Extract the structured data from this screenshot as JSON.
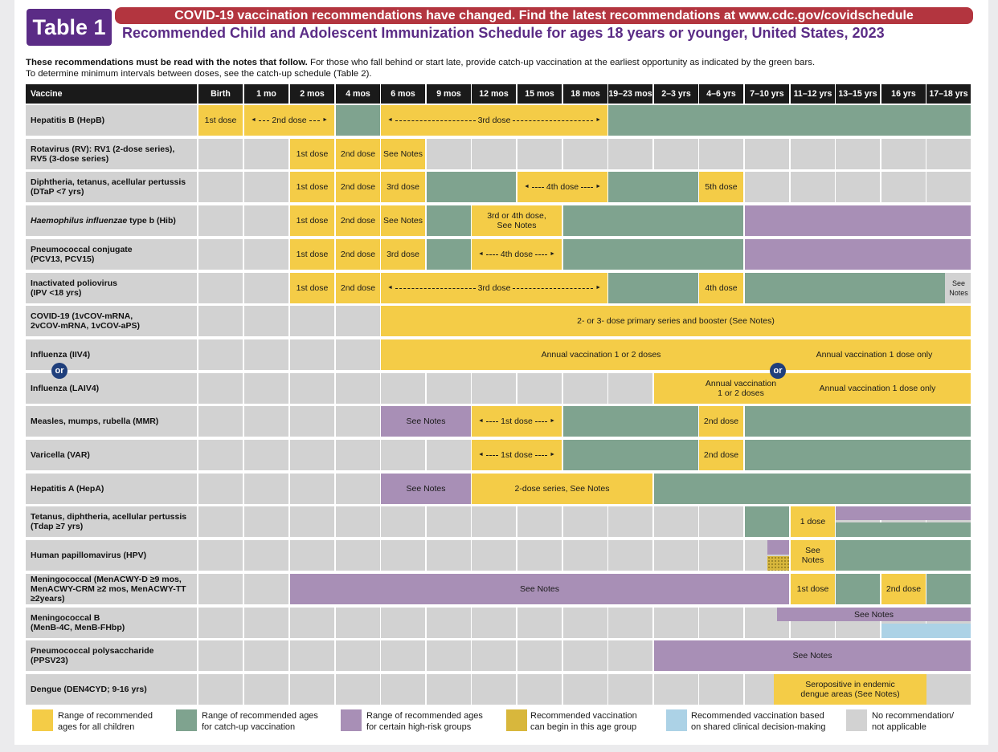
{
  "header": {
    "badge": "Table 1",
    "banner": "COVID-19 vaccination recommendations have changed. Find the latest recommendations at www.cdc.gov/covidschedule",
    "subtitle": "Recommended Child and Adolescent Immunization Schedule for ages 18 years or younger, United States, 2023",
    "intro_bold": "These recommendations must be read with the notes that follow.",
    "intro_rest": " For those who fall behind or start late, provide catch-up vaccination at the earliest opportunity as indicated by the green bars.",
    "intro_line2": "To determine minimum intervals between doses, see the catch-up schedule (Table 2)."
  },
  "columns": [
    "Vaccine",
    "Birth",
    "1 mo",
    "2 mos",
    "4 mos",
    "6 mos",
    "9 mos",
    "12 mos",
    "15 mos",
    "18 mos",
    "19–23 mos",
    "2–3 yrs",
    "4–6 yrs",
    "7–10 yrs",
    "11–12 yrs",
    "13–15 yrs",
    "16 yrs",
    "17–18 yrs"
  ],
  "vaccines": [
    {
      "line1": "Hepatitis B (HepB)",
      "line2": ""
    },
    {
      "line1": "Rotavirus (RV): RV1 (2-dose series),",
      "line2": "RV5 (3-dose series)"
    },
    {
      "line1": "Diphtheria, tetanus, acellular pertussis",
      "line2": "(DTaP <7 yrs)"
    },
    {
      "line1_italic": "Haemophilus influenzae",
      "line1_rest": " type b (Hib)"
    },
    {
      "line1": "Pneumococcal conjugate",
      "line2": "(PCV13, PCV15)"
    },
    {
      "line1": "Inactivated poliovirus",
      "line2": "(IPV <18 yrs)"
    },
    {
      "line1": "COVID-19 (1vCOV-mRNA,",
      "line2": "2vCOV-mRNA, 1vCOV-aPS)"
    },
    {
      "line1": "Influenza (IIV4)",
      "line2": ""
    },
    {
      "line1": "Influenza (LAIV4)",
      "line2": ""
    },
    {
      "line1": "Measles, mumps, rubella (MMR)",
      "line2": ""
    },
    {
      "line1": "Varicella (VAR)",
      "line2": ""
    },
    {
      "line1": "Hepatitis A (HepA)",
      "line2": ""
    },
    {
      "line1": "Tetanus, diphtheria, acellular pertussis",
      "line2": "(Tdap ≥7 yrs)"
    },
    {
      "line1": "Human papillomavirus (HPV)",
      "line2": ""
    },
    {
      "line1": "Meningococcal (MenACWY-D ≥9 mos,",
      "line2": "MenACWY-CRM ≥2 mos,  MenACWY-TT",
      "line3": "≥2years)"
    },
    {
      "line1": "Meningococcal B",
      "line2": "(MenB-4C, MenB-FHbp)"
    },
    {
      "line1": "Pneumococcal polysaccharide",
      "line2": "(PPSV23)"
    },
    {
      "line1": "Dengue (DEN4CYD; 9-16 yrs)",
      "line2": ""
    }
  ],
  "labels": {
    "first_dose": "1st dose",
    "second_dose": "2nd dose",
    "third_dose": "3rd dose",
    "fourth_dose": "4th dose",
    "fifth_dose": "5th dose",
    "see_notes": "See Notes",
    "see": "See",
    "notes": "Notes",
    "hib_34_line1": "3rd or 4th dose,",
    "hib_34_line2": "See Notes",
    "covid": "2- or 3- dose primary series and booster (See Notes)",
    "flu_annual": "Annual vaccination 1 or 2 doses",
    "flu_one": "Annual vaccination 1 dose only",
    "laiv_line1": "Annual vaccination",
    "laiv_line2": "1 or 2 doses",
    "hepa_series": "2-dose series, See Notes",
    "one_dose": "1 dose",
    "dengue_line1": "Seropositive in endemic",
    "dengue_line2": "dengue areas (See Notes)",
    "or": "or"
  },
  "legend": [
    {
      "line1": "Range of recommended",
      "line2": "ages for all children",
      "color": "#f4cc47"
    },
    {
      "line1": "Range of recommended ages",
      "line2": "for catch-up vaccination",
      "color": "#7fa38f"
    },
    {
      "line1": "Range of recommended ages",
      "line2": "for certain high-risk groups",
      "color": "#a88fb6"
    },
    {
      "line1": "Recommended vaccination",
      "line2": "can begin in this age group",
      "color": "#d8b73c"
    },
    {
      "line1": "Recommended vaccination based",
      "line2": "on shared clinical decision-making",
      "color": "#acd2e6"
    },
    {
      "line1": "No recommendation/",
      "line2": "not applicable",
      "color": "#d2d2d2"
    }
  ],
  "colors": {
    "yellow": "#f4cc47",
    "green": "#7fa38f",
    "purple": "#a88fb6",
    "blue": "#acd2e6",
    "gray": "#d2d2d2",
    "banner": "#b3353f",
    "brand": "#5b2c86"
  }
}
